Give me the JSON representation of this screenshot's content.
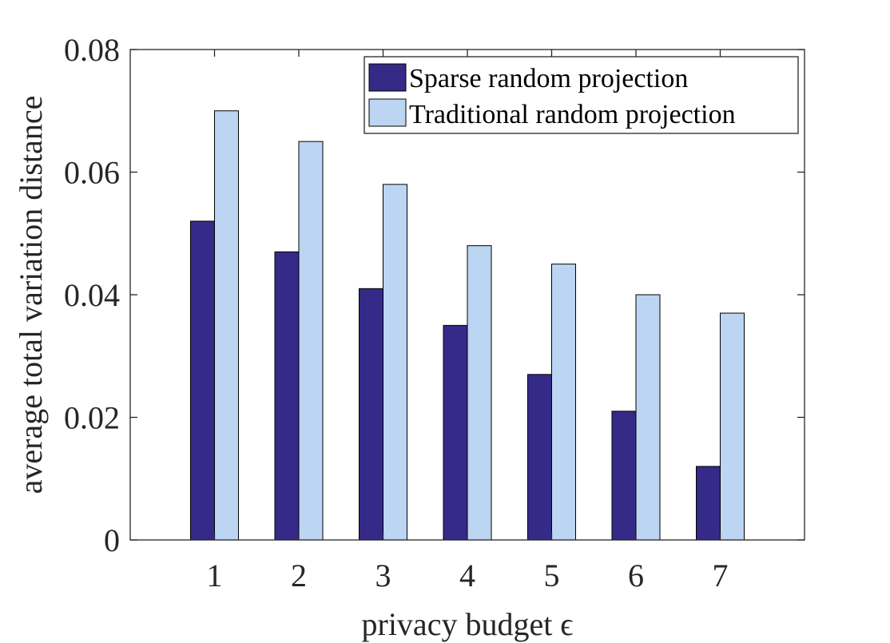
{
  "chart_data": {
    "type": "bar",
    "title": "",
    "xlabel": "privacy budget ϵ",
    "ylabel": "average total variation distance",
    "categories": [
      "1",
      "2",
      "3",
      "4",
      "5",
      "6",
      "7"
    ],
    "series": [
      {
        "name": "Sparse random projection",
        "values": [
          0.052,
          0.047,
          0.041,
          0.035,
          0.027,
          0.021,
          0.012
        ],
        "color": "#352a87"
      },
      {
        "name": "Traditional random projection",
        "values": [
          0.07,
          0.065,
          0.058,
          0.048,
          0.045,
          0.04,
          0.037
        ],
        "color": "#bcd5f2"
      }
    ],
    "ylim": [
      0,
      0.08
    ],
    "xlim": [
      0,
      8
    ],
    "yticks": [
      0,
      0.02,
      0.04,
      0.06,
      0.08
    ],
    "ytick_labels": [
      "0",
      "0.02",
      "0.04",
      "0.06",
      "0.08"
    ],
    "grid": false,
    "legend_position": "top-right"
  }
}
